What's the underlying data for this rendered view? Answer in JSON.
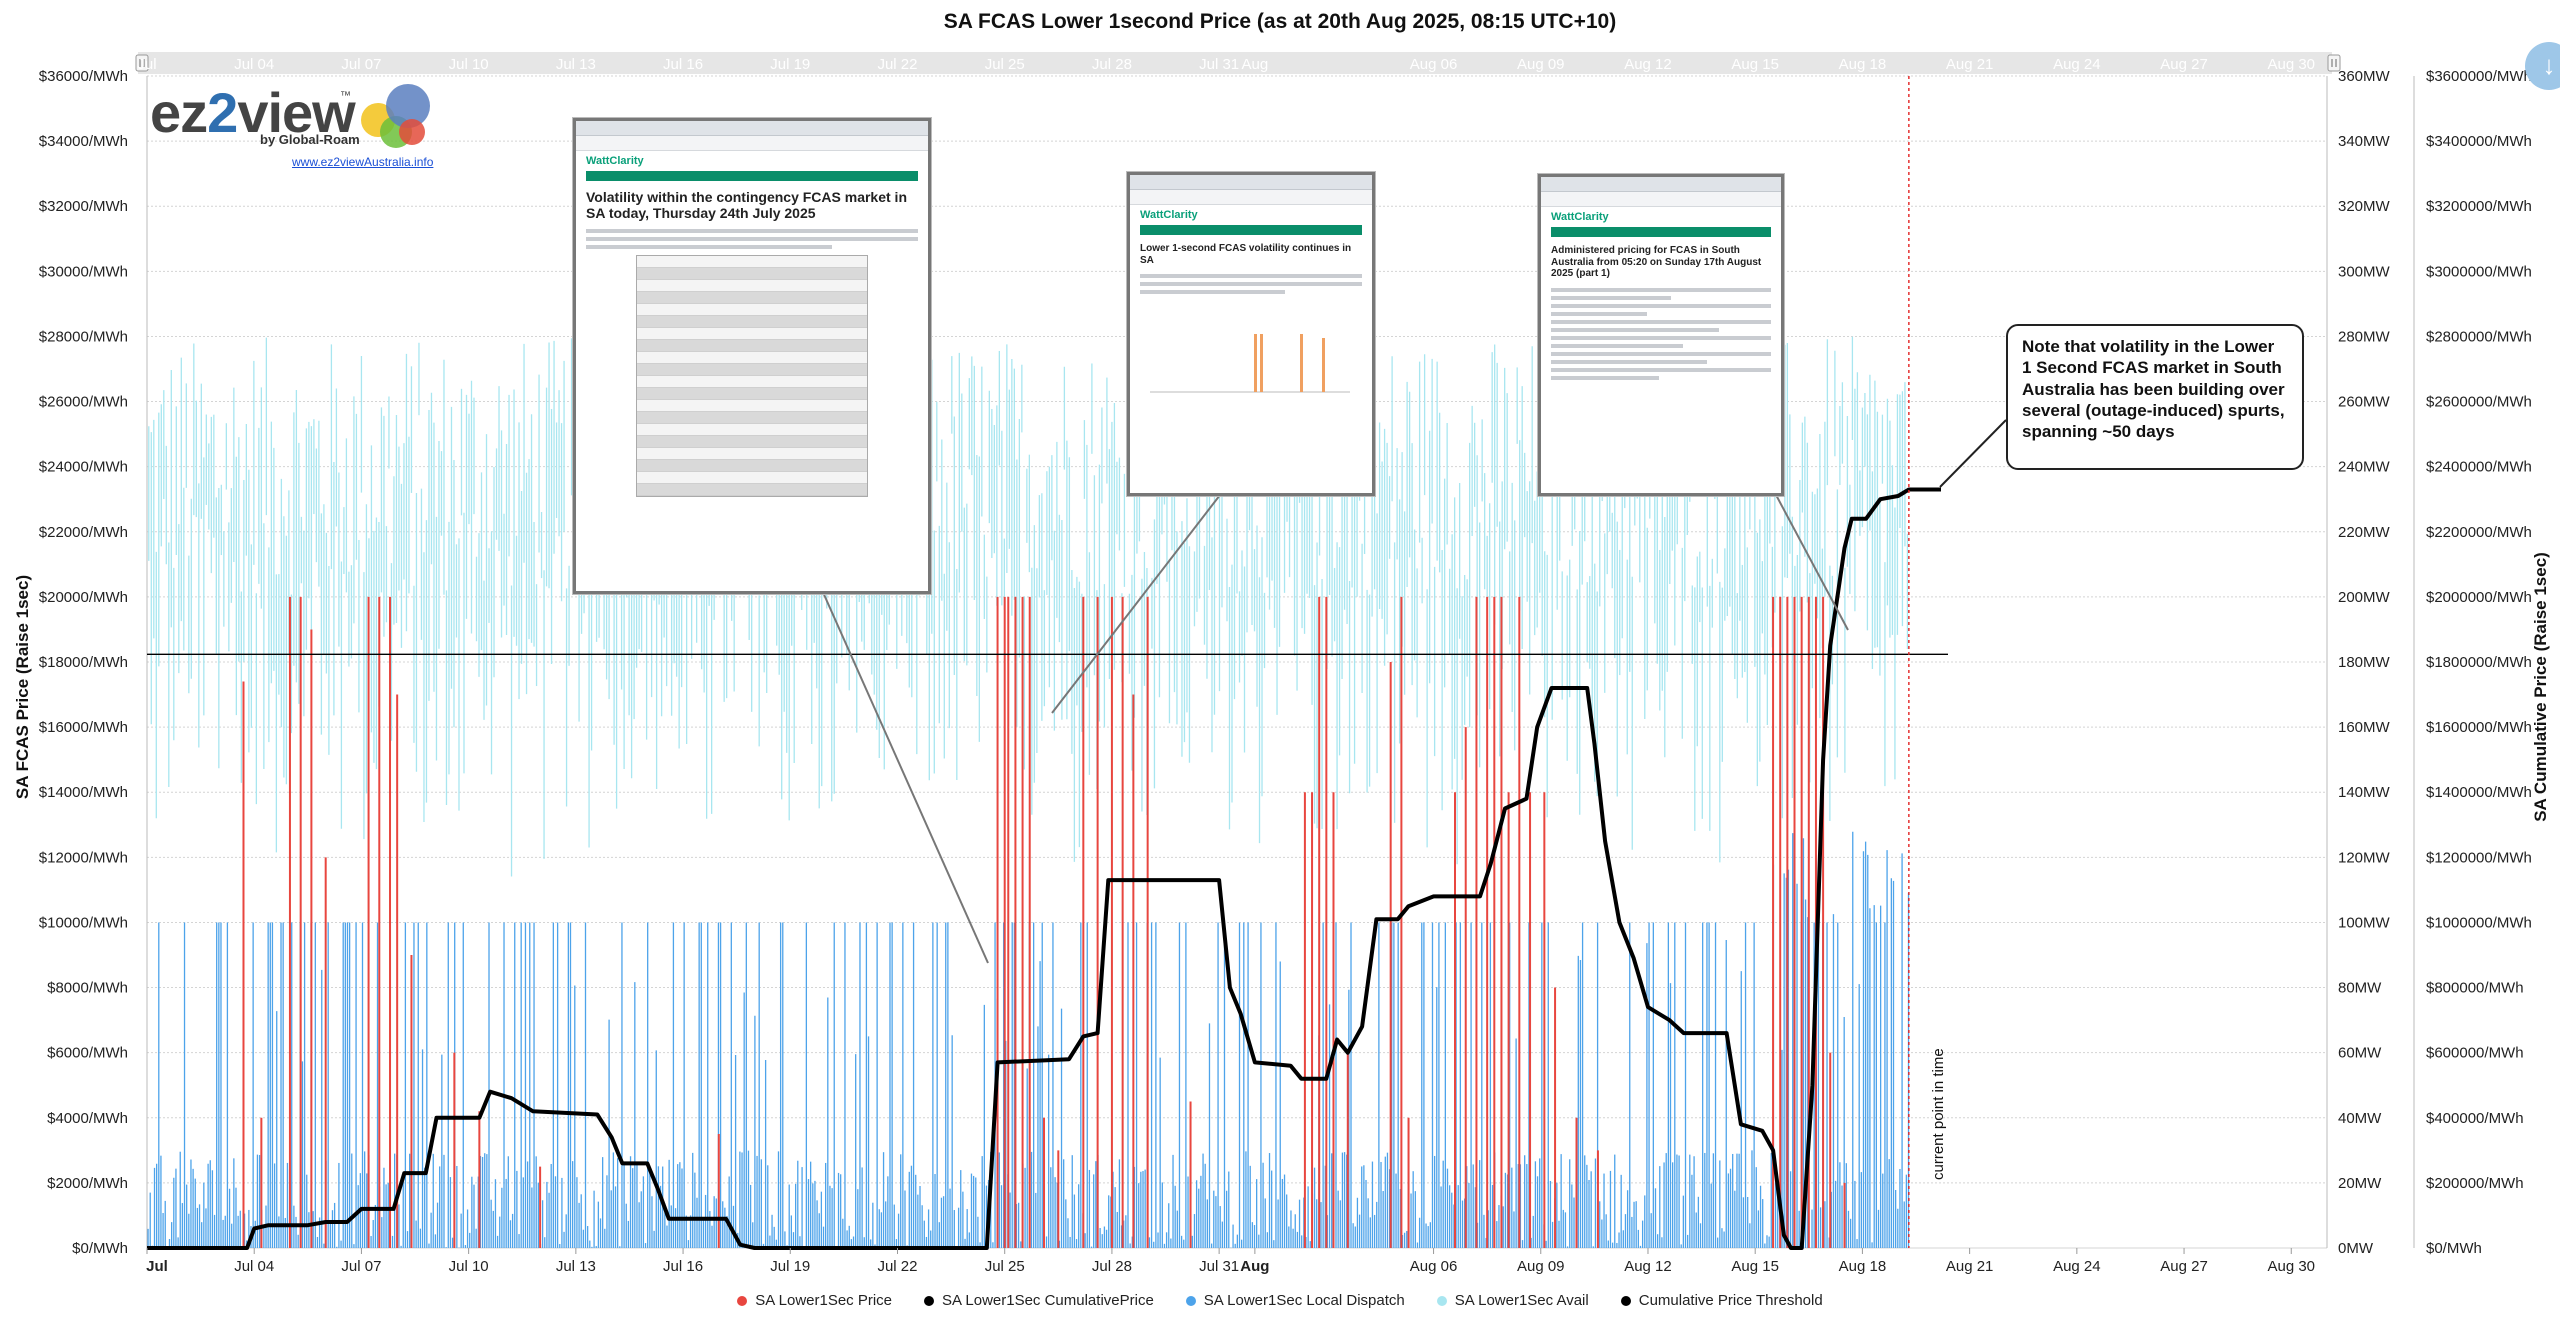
{
  "title": "SA FCAS Lower 1second Price (as at 20th Aug 2025, 08:15 UTC+10)",
  "logo": {
    "brand_a": "ez",
    "brand_b": "2",
    "brand_c": "view",
    "tm": "™",
    "by": "by Global-Roam",
    "url": "www.ez2viewAustralia.info"
  },
  "note": "Note that volatility in the Lower 1 Second FCAS market in South Australia has been building over several (outage-induced) spurts, spanning ~50 days",
  "current_point_label": "current point in time",
  "insets": [
    {
      "brand": "WattClarity",
      "headline": "Volatility within the contingency FCAS market in SA today, Thursday 24th July 2025"
    },
    {
      "brand": "WattClarity",
      "headline": "Lower 1-second FCAS volatility continues in SA"
    },
    {
      "brand": "WattClarity",
      "headline": "Administered pricing for FCAS in South Australia from 05:20 on Sunday 17th August 2025 (part 1)"
    }
  ],
  "icons": {
    "download": "download-icon",
    "nav_left": "range-handle-left-icon",
    "nav_right": "range-handle-right-icon"
  },
  "colors": {
    "price": "#e8463f",
    "cumulative": "#000000",
    "dispatch": "#4da3ea",
    "avail": "#a8e6f0",
    "threshold": "#000000"
  },
  "chart_data": {
    "type": "line",
    "title": "SA FCAS Lower 1second Price (as at 20th Aug 2025, 08:15 UTC+10)",
    "x_range": [
      "2025-07-01",
      "2025-08-31"
    ],
    "x_ticks": [
      "Jul",
      "Jul 04",
      "Jul 07",
      "Jul 10",
      "Jul 13",
      "Jul 16",
      "Jul 19",
      "Jul 22",
      "Jul 25",
      "Jul 28",
      "Jul 31",
      "Aug",
      "Aug 06",
      "Aug 09",
      "Aug 12",
      "Aug 15",
      "Aug 18",
      "Aug 21",
      "Aug 24",
      "Aug 27",
      "Aug 30"
    ],
    "x_tick_days": [
      0,
      3,
      6,
      9,
      12,
      15,
      18,
      21,
      24,
      27,
      30,
      31,
      36,
      39,
      42,
      45,
      48,
      51,
      54,
      57,
      60
    ],
    "left_axis": {
      "label": "SA FCAS Price (Raise 1sec)",
      "ticks": [
        "$0/MWh",
        "$2000/MWh",
        "$4000/MWh",
        "$6000/MWh",
        "$8000/MWh",
        "$10000/MWh",
        "$12000/MWh",
        "$14000/MWh",
        "$16000/MWh",
        "$18000/MWh",
        "$20000/MWh",
        "$22000/MWh",
        "$24000/MWh",
        "$26000/MWh",
        "$28000/MWh",
        "$30000/MWh",
        "$32000/MWh",
        "$34000/MWh",
        "$36000/MWh"
      ],
      "range": [
        0,
        36000
      ]
    },
    "mw_axis": {
      "ticks": [
        "0MW",
        "20MW",
        "40MW",
        "60MW",
        "80MW",
        "100MW",
        "120MW",
        "140MW",
        "160MW",
        "180MW",
        "200MW",
        "220MW",
        "240MW",
        "260MW",
        "280MW",
        "300MW",
        "320MW",
        "340MW",
        "360MW"
      ],
      "range": [
        0,
        360
      ]
    },
    "right_axis": {
      "label": "SA Cumulative Price (Raise 1sec)",
      "ticks": [
        "$0/MWh",
        "$200000/MWh",
        "$400000/MWh",
        "$600000/MWh",
        "$800000/MWh",
        "$1000000/MWh",
        "$1200000/MWh",
        "$1400000/MWh",
        "$1600000/MWh",
        "$1800000/MWh",
        "$2000000/MWh",
        "$2200000/MWh",
        "$2400000/MWh",
        "$2600000/MWh",
        "$2800000/MWh",
        "$3000000/MWh",
        "$3200000/MWh",
        "$3400000/MWh",
        "$3600000/MWh"
      ],
      "range": [
        0,
        3600000
      ]
    },
    "threshold": {
      "name": "Cumulative Price Threshold",
      "value": 1823600
    },
    "current_day": 49.3,
    "grid": true,
    "legend_position": "bottom",
    "series": [
      {
        "name": "SA Lower1Sec Price",
        "type": "spikes",
        "unit": "$/MWh",
        "points": [
          [
            2.7,
            17400
          ],
          [
            3.2,
            4000
          ],
          [
            4.0,
            20000
          ],
          [
            4.3,
            20000
          ],
          [
            4.6,
            19000
          ],
          [
            5.0,
            12000
          ],
          [
            6.2,
            20000
          ],
          [
            6.5,
            20000
          ],
          [
            6.8,
            20000
          ],
          [
            7.0,
            17000
          ],
          [
            7.4,
            9000
          ],
          [
            8.6,
            6000
          ],
          [
            9.3,
            4200
          ],
          [
            11.0,
            2500
          ],
          [
            16.0,
            3500
          ],
          [
            23.8,
            20000
          ],
          [
            24.0,
            20000
          ],
          [
            24.1,
            20000
          ],
          [
            24.3,
            20000
          ],
          [
            24.5,
            20000
          ],
          [
            24.7,
            20000
          ],
          [
            25.1,
            4000
          ],
          [
            25.5,
            3000
          ],
          [
            26.2,
            20000
          ],
          [
            26.6,
            20000
          ],
          [
            27.0,
            20000
          ],
          [
            27.3,
            20000
          ],
          [
            27.6,
            17000
          ],
          [
            28.0,
            20000
          ],
          [
            29.2,
            4500
          ],
          [
            32.4,
            14000
          ],
          [
            32.6,
            14000
          ],
          [
            32.8,
            20000
          ],
          [
            33.0,
            20000
          ],
          [
            33.2,
            14000
          ],
          [
            33.6,
            6000
          ],
          [
            34.8,
            18000
          ],
          [
            35.1,
            20000
          ],
          [
            35.3,
            4000
          ],
          [
            36.6,
            14000
          ],
          [
            36.9,
            16000
          ],
          [
            37.2,
            20000
          ],
          [
            37.5,
            20000
          ],
          [
            37.7,
            20000
          ],
          [
            37.9,
            20000
          ],
          [
            38.1,
            14000
          ],
          [
            38.4,
            20000
          ],
          [
            38.7,
            14000
          ],
          [
            39.1,
            14000
          ],
          [
            39.4,
            8000
          ],
          [
            40.0,
            4000
          ],
          [
            40.6,
            3000
          ],
          [
            45.5,
            20000
          ],
          [
            45.7,
            20000
          ],
          [
            45.9,
            20000
          ],
          [
            46.1,
            20000
          ],
          [
            46.3,
            20000
          ],
          [
            46.5,
            20000
          ],
          [
            46.7,
            20000
          ],
          [
            46.9,
            20000
          ],
          [
            47.1,
            6000
          ],
          [
            47.5,
            2000
          ]
        ]
      },
      {
        "name": "SA Lower1Sec CumulativePrice",
        "type": "line",
        "unit": "$/MWh",
        "points": [
          [
            0,
            0
          ],
          [
            2.8,
            0
          ],
          [
            3.0,
            60000
          ],
          [
            3.4,
            70000
          ],
          [
            4.5,
            70000
          ],
          [
            5.0,
            80000
          ],
          [
            5.6,
            80000
          ],
          [
            6.0,
            120000
          ],
          [
            6.9,
            120000
          ],
          [
            7.2,
            230000
          ],
          [
            7.8,
            230000
          ],
          [
            8.1,
            400000
          ],
          [
            9.3,
            400000
          ],
          [
            9.6,
            480000
          ],
          [
            10.2,
            460000
          ],
          [
            10.8,
            420000
          ],
          [
            12.6,
            410000
          ],
          [
            13.0,
            340000
          ],
          [
            13.3,
            260000
          ],
          [
            14.0,
            260000
          ],
          [
            14.3,
            180000
          ],
          [
            14.6,
            90000
          ],
          [
            16.2,
            90000
          ],
          [
            16.6,
            10000
          ],
          [
            17.0,
            0
          ],
          [
            23.5,
            0
          ],
          [
            23.8,
            570000
          ],
          [
            25.8,
            580000
          ],
          [
            26.2,
            650000
          ],
          [
            26.6,
            660000
          ],
          [
            26.9,
            1130000
          ],
          [
            30.0,
            1130000
          ],
          [
            30.3,
            800000
          ],
          [
            30.6,
            720000
          ],
          [
            31.0,
            570000
          ],
          [
            32.0,
            560000
          ],
          [
            32.3,
            520000
          ],
          [
            33.0,
            520000
          ],
          [
            33.3,
            640000
          ],
          [
            33.6,
            600000
          ],
          [
            34.0,
            680000
          ],
          [
            34.4,
            1010000
          ],
          [
            35.0,
            1010000
          ],
          [
            35.3,
            1050000
          ],
          [
            36.0,
            1080000
          ],
          [
            37.3,
            1080000
          ],
          [
            37.6,
            1180000
          ],
          [
            38.0,
            1350000
          ],
          [
            38.6,
            1380000
          ],
          [
            38.9,
            1600000
          ],
          [
            39.3,
            1720000
          ],
          [
            40.3,
            1720000
          ],
          [
            40.5,
            1550000
          ],
          [
            40.8,
            1250000
          ],
          [
            41.2,
            1000000
          ],
          [
            41.6,
            890000
          ],
          [
            42.0,
            740000
          ],
          [
            42.6,
            700000
          ],
          [
            43.0,
            660000
          ],
          [
            44.2,
            660000
          ],
          [
            44.6,
            380000
          ],
          [
            45.2,
            360000
          ],
          [
            45.5,
            300000
          ],
          [
            45.8,
            40000
          ],
          [
            46.0,
            0
          ],
          [
            46.3,
            0
          ],
          [
            46.6,
            500000
          ],
          [
            46.9,
            1500000
          ],
          [
            47.1,
            1850000
          ],
          [
            47.3,
            2000000
          ],
          [
            47.5,
            2150000
          ],
          [
            47.7,
            2240000
          ],
          [
            48.1,
            2240000
          ],
          [
            48.5,
            2300000
          ],
          [
            49.0,
            2310000
          ],
          [
            49.3,
            2330000
          ],
          [
            50.2,
            2330000
          ]
        ]
      },
      {
        "name": "SA Lower1Sec Local Dispatch",
        "type": "spikes",
        "unit": "MW",
        "typical_peak": 100,
        "max": 128
      },
      {
        "name": "SA Lower1Sec Avail",
        "type": "spikes",
        "unit": "MW",
        "typical_range": [
          200,
          280
        ],
        "max": 305
      },
      {
        "name": "Cumulative Price Threshold",
        "type": "hline",
        "unit": "$/MWh",
        "value": 1823600
      }
    ]
  }
}
